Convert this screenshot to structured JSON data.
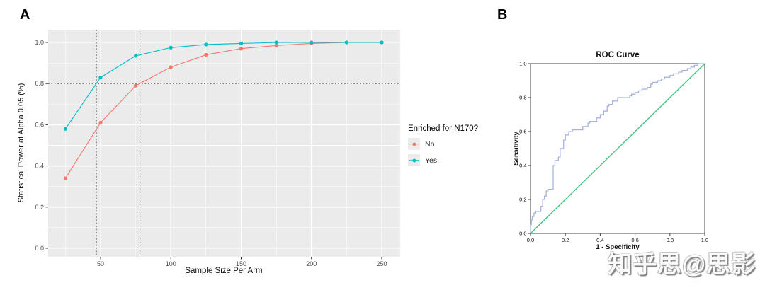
{
  "panels": {
    "a_label": "A",
    "b_label": "B"
  },
  "watermark": {
    "text": "知乎思@思影"
  },
  "colors": {
    "panel_background": "#EBEBEB",
    "gridline": "#FFFFFF",
    "series_no": "#F8766D",
    "series_yes": "#00BFC4",
    "reference_dashed": "#4D4D4D",
    "roc_curve": "#A8B3E0",
    "roc_diagonal": "#3FC57D",
    "tick_label_gray": "#4D4D4D"
  },
  "chart_data": [
    {
      "id": "power_curve",
      "type": "line",
      "title": "",
      "xlabel": "Sample Size Per Arm",
      "ylabel": "Statistical Power at Alpha 0.05 (%)",
      "x": [
        25,
        50,
        75,
        100,
        125,
        150,
        175,
        200,
        225,
        250
      ],
      "series": [
        {
          "name": "No",
          "color": "#F8766D",
          "values": [
            0.34,
            0.61,
            0.79,
            0.88,
            0.94,
            0.97,
            0.985,
            0.995,
            1.0,
            1.0
          ]
        },
        {
          "name": "Yes",
          "color": "#00BFC4",
          "values": [
            0.58,
            0.83,
            0.935,
            0.975,
            0.99,
            0.995,
            1.0,
            1.0,
            1.0,
            1.0
          ]
        }
      ],
      "x_ticks": [
        50,
        100,
        150,
        200,
        250
      ],
      "y_ticks": [
        0.0,
        0.2,
        0.4,
        0.6,
        0.8,
        1.0
      ],
      "x_minor": [
        25,
        75,
        125,
        175,
        225
      ],
      "y_minor": [
        0.1,
        0.3,
        0.5,
        0.7,
        0.9
      ],
      "xlim": [
        13,
        263
      ],
      "ylim": [
        -0.04,
        1.06
      ],
      "grid": true,
      "reference_lines": {
        "h": [
          0.8
        ],
        "v": [
          47,
          78
        ]
      },
      "reference_meaning": {
        "power_threshold": 0.8,
        "sample_size_at_80_power_yes": 47,
        "sample_size_at_80_power_no": 78
      },
      "legend": {
        "title": "Enriched for N170?",
        "position": "right",
        "items": [
          {
            "label": "No",
            "color": "#F8766D"
          },
          {
            "label": "Yes",
            "color": "#00BFC4"
          }
        ]
      }
    },
    {
      "id": "roc_curve",
      "type": "line",
      "title": "ROC Curve",
      "xlabel": "1 - Specificity",
      "ylabel": "Sensitivity",
      "x_ticks": [
        0.0,
        0.2,
        0.4,
        0.6,
        0.8,
        1.0
      ],
      "y_ticks": [
        0.0,
        0.2,
        0.4,
        0.6,
        0.8,
        1.0
      ],
      "xlim": [
        0,
        1
      ],
      "ylim": [
        0,
        1
      ],
      "grid": false,
      "series": [
        {
          "name": "ROC",
          "color": "#A8B3E0",
          "step": true,
          "points": [
            [
              0,
              0
            ],
            [
              0.005,
              0.05
            ],
            [
              0.01,
              0.08
            ],
            [
              0.02,
              0.1
            ],
            [
              0.03,
              0.12
            ],
            [
              0.06,
              0.13
            ],
            [
              0.07,
              0.16
            ],
            [
              0.08,
              0.2
            ],
            [
              0.09,
              0.22
            ],
            [
              0.1,
              0.25
            ],
            [
              0.13,
              0.26
            ],
            [
              0.14,
              0.4
            ],
            [
              0.16,
              0.43
            ],
            [
              0.17,
              0.45
            ],
            [
              0.19,
              0.5
            ],
            [
              0.2,
              0.55
            ],
            [
              0.22,
              0.58
            ],
            [
              0.24,
              0.6
            ],
            [
              0.3,
              0.61
            ],
            [
              0.33,
              0.63
            ],
            [
              0.34,
              0.65
            ],
            [
              0.38,
              0.66
            ],
            [
              0.4,
              0.68
            ],
            [
              0.42,
              0.7
            ],
            [
              0.44,
              0.72
            ],
            [
              0.45,
              0.75
            ],
            [
              0.47,
              0.76
            ],
            [
              0.5,
              0.78
            ],
            [
              0.52,
              0.8
            ],
            [
              0.57,
              0.8
            ],
            [
              0.58,
              0.81
            ],
            [
              0.6,
              0.82
            ],
            [
              0.62,
              0.83
            ],
            [
              0.64,
              0.84
            ],
            [
              0.67,
              0.85
            ],
            [
              0.69,
              0.86
            ],
            [
              0.7,
              0.88
            ],
            [
              0.73,
              0.89
            ],
            [
              0.75,
              0.9
            ],
            [
              0.77,
              0.91
            ],
            [
              0.8,
              0.92
            ],
            [
              0.82,
              0.93
            ],
            [
              0.85,
              0.94
            ],
            [
              0.87,
              0.95
            ],
            [
              0.9,
              0.96
            ],
            [
              0.92,
              0.97
            ],
            [
              0.94,
              0.98
            ],
            [
              0.96,
              0.99
            ],
            [
              1.0,
              1.0
            ]
          ]
        },
        {
          "name": "Reference diagonal",
          "color": "#3FC57D",
          "step": false,
          "points": [
            [
              0,
              0
            ],
            [
              1,
              1
            ]
          ]
        }
      ]
    }
  ]
}
